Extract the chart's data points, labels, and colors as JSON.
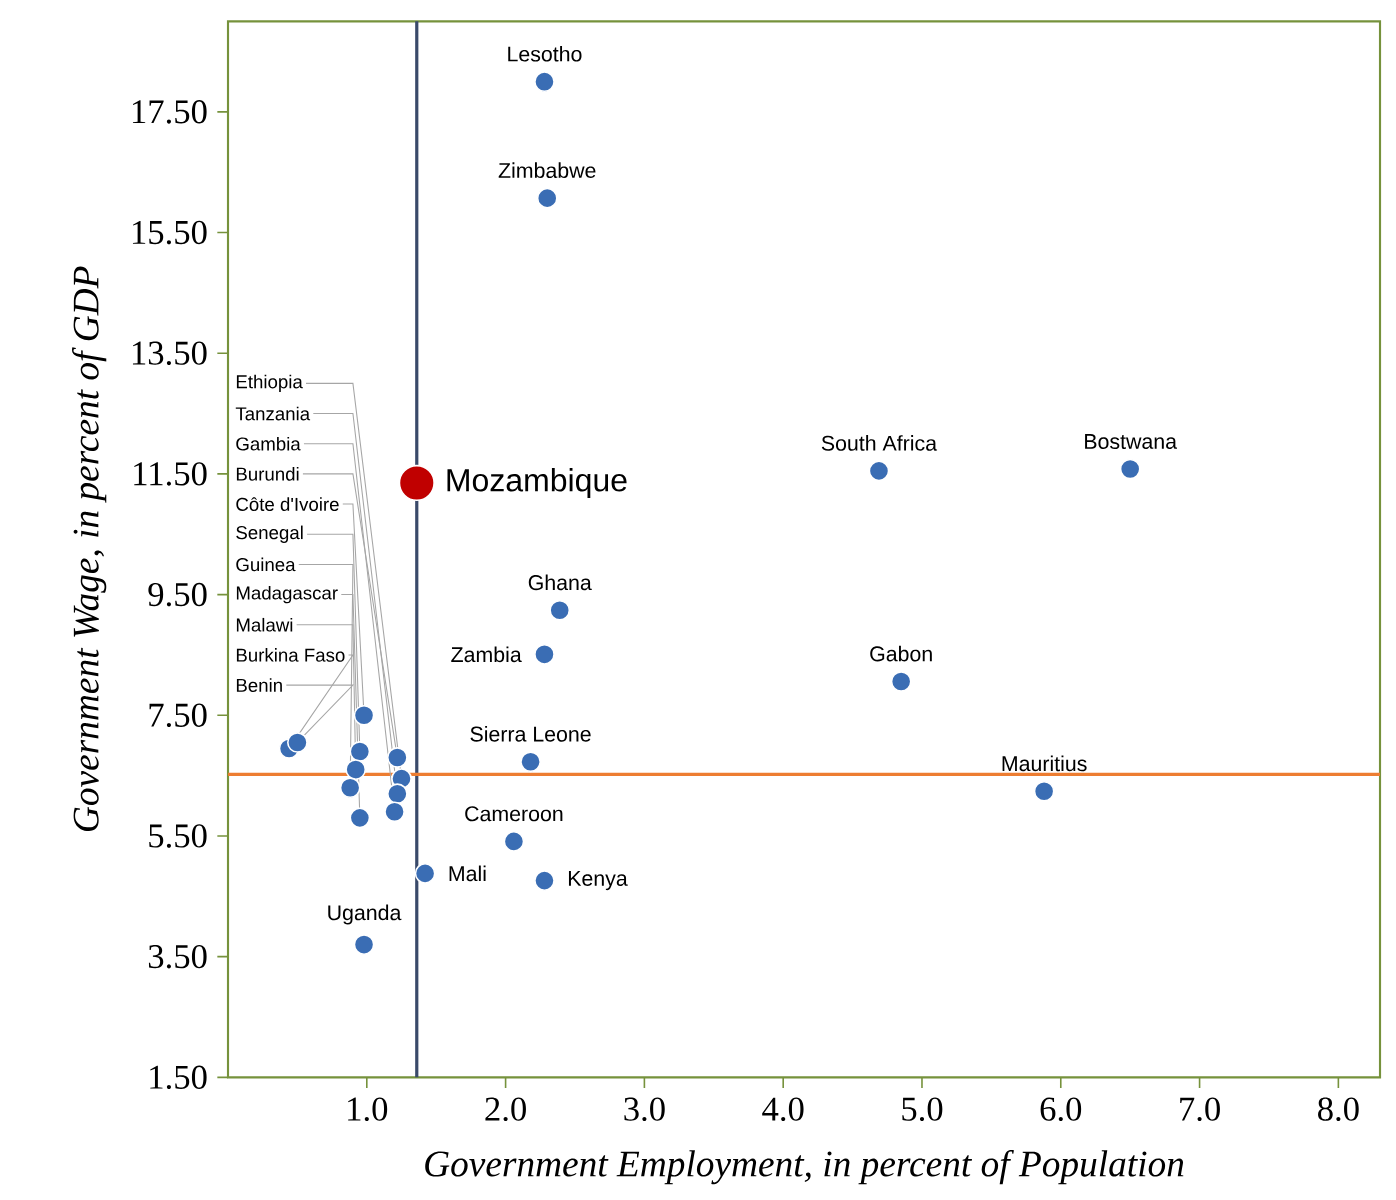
{
  "chart_data": {
    "type": "scatter",
    "xlabel": "Government Employment, in percent of Population",
    "ylabel": "Government Wage, in percent of GDP",
    "marker": "circle",
    "xlim": [
      0,
      8.3
    ],
    "ylim": [
      1.5,
      19
    ],
    "xticks": [
      {
        "value": 1,
        "label": "1.0"
      },
      {
        "value": 2,
        "label": "2.0"
      },
      {
        "value": 3,
        "label": "3.0"
      },
      {
        "value": 4,
        "label": "4.0"
      },
      {
        "value": 5,
        "label": "5.0"
      },
      {
        "value": 6,
        "label": "6.0"
      },
      {
        "value": 7,
        "label": "7.0"
      },
      {
        "value": 8,
        "label": "8.0"
      }
    ],
    "yticks": [
      {
        "value": 1.5,
        "label": "1.50"
      },
      {
        "value": 3.5,
        "label": "3.50"
      },
      {
        "value": 5.5,
        "label": "5.50"
      },
      {
        "value": 7.5,
        "label": "7.50"
      },
      {
        "value": 9.5,
        "label": "9.50"
      },
      {
        "value": 11.5,
        "label": "11.50"
      },
      {
        "value": 13.5,
        "label": "13.50"
      },
      {
        "value": 15.5,
        "label": "15.50"
      },
      {
        "value": 17.5,
        "label": "17.50"
      }
    ],
    "series": [
      {
        "color": "#3a6db4",
        "x": [
          2.28,
          2.3,
          4.69,
          6.5,
          2.39,
          2.28,
          4.85,
          5.88,
          2.18,
          2.06,
          2.28,
          1.42,
          0.98,
          0.98,
          1.22,
          0.95,
          0.44,
          0.92,
          0.5,
          1.25,
          1.22,
          0.88,
          1.2,
          0.95
        ],
        "values": [
          18.0,
          16.07,
          11.55,
          11.58,
          9.24,
          8.51,
          8.06,
          6.24,
          6.73,
          5.41,
          4.76,
          4.88,
          3.7,
          7.5,
          6.8,
          6.9,
          6.95,
          6.6,
          7.05,
          6.45,
          6.2,
          6.3,
          5.9,
          5.8
        ]
      },
      {
        "name": "Mozambique",
        "color": "#c00000",
        "x": [
          1.36
        ],
        "values": [
          11.35
        ]
      }
    ],
    "ref_lines": [
      {
        "axis": "x",
        "value": 1.36,
        "color": "#3a4a6a"
      },
      {
        "axis": "y",
        "value": 6.52,
        "color": "#ed7d31"
      }
    ],
    "annotations": [
      {
        "text": "Lesotho",
        "x": 2.28,
        "y": 18.0
      },
      {
        "text": "Zimbabwe",
        "x": 2.3,
        "y": 16.07
      },
      {
        "text": "South  Africa",
        "x": 4.69,
        "y": 11.55
      },
      {
        "text": "Bostwana",
        "x": 6.5,
        "y": 11.58
      },
      {
        "text": "Ghana",
        "x": 2.39,
        "y": 9.24
      },
      {
        "text": "Zambia",
        "x": 2.28,
        "y": 8.51
      },
      {
        "text": "Gabon",
        "x": 4.85,
        "y": 8.06
      },
      {
        "text": "Mauritius",
        "x": 5.88,
        "y": 6.24
      },
      {
        "text": "Sierra Leone",
        "x": 2.18,
        "y": 6.73
      },
      {
        "text": "Cameroon",
        "x": 2.06,
        "y": 5.41
      },
      {
        "text": "Kenya",
        "x": 2.28,
        "y": 4.76
      },
      {
        "text": "Mali",
        "x": 1.42,
        "y": 4.88
      },
      {
        "text": "Uganda",
        "x": 0.98,
        "y": 3.7
      },
      {
        "text": "Côte d'Ivoire",
        "x": 0.98,
        "y": 7.5
      },
      {
        "text": "Burundi",
        "x": 1.22,
        "y": 6.8
      },
      {
        "text": "Senegal",
        "x": 0.95,
        "y": 6.9
      },
      {
        "text": "Burkina Faso",
        "x": 0.44,
        "y": 6.95
      },
      {
        "text": "Malawi",
        "x": 0.92,
        "y": 6.6
      },
      {
        "text": "Benin",
        "x": 0.5,
        "y": 7.05
      },
      {
        "text": "Ethiopia",
        "x": 1.25,
        "y": 6.45
      },
      {
        "text": "Tanzania",
        "x": 1.22,
        "y": 6.2
      },
      {
        "text": "Guinea",
        "x": 0.88,
        "y": 6.3
      },
      {
        "text": "Gambia",
        "x": 1.2,
        "y": 5.9
      },
      {
        "text": "Madagascar",
        "x": 0.95,
        "y": 5.8
      }
    ]
  }
}
